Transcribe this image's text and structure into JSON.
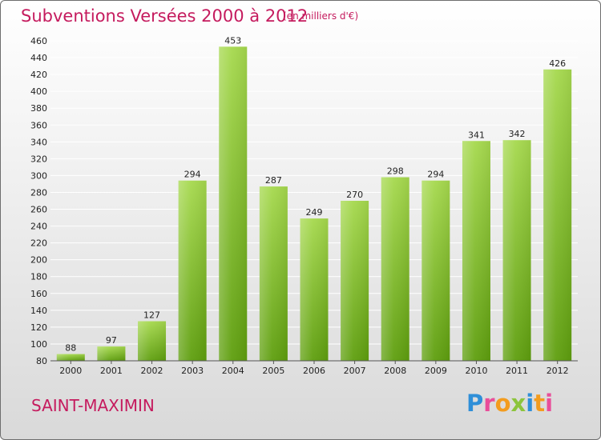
{
  "header": {
    "title": "Subventions Versées 2000 à 2012",
    "unit": "(en milliers d'€)"
  },
  "footer": {
    "place": "SAINT-MAXIMIN",
    "logo_text": "Proxiti"
  },
  "colors": {
    "title": "#c51b5e",
    "bar_light": "#a6d94e",
    "bar_dark": "#5e9e0e",
    "grid": "#ffffff"
  },
  "chart_data": {
    "type": "bar",
    "title": "Subventions Versées 2000 à 2012",
    "xlabel": "",
    "ylabel": "",
    "categories": [
      "2000",
      "2001",
      "2002",
      "2003",
      "2004",
      "2005",
      "2006",
      "2007",
      "2008",
      "2009",
      "2010",
      "2011",
      "2012"
    ],
    "values": [
      88,
      97,
      127,
      294,
      453,
      287,
      249,
      270,
      298,
      294,
      341,
      342,
      426
    ],
    "ylim": [
      80,
      460
    ],
    "yticks": [
      80,
      100,
      120,
      140,
      160,
      180,
      200,
      220,
      240,
      260,
      280,
      300,
      320,
      340,
      360,
      380,
      400,
      420,
      440,
      460
    ],
    "grid": true,
    "legend": "none"
  }
}
